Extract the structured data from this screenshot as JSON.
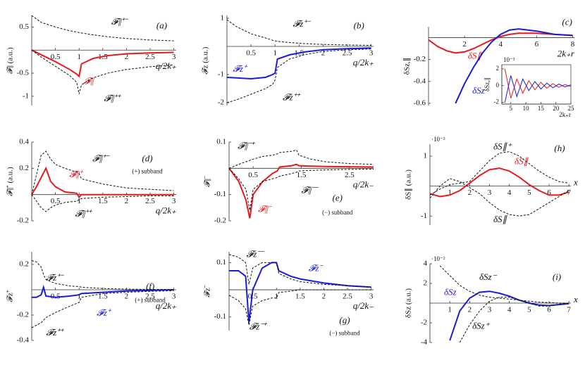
{
  "chart_data": [
    {
      "type": "line",
      "label": "(a)",
      "xlabel": "q/2k₊",
      "ylabel": "𝓕∥ (a.u.)",
      "xlim": [
        0,
        3.05
      ],
      "ylim": [
        -1.2,
        0.75
      ],
      "xticks": [
        0.5,
        1,
        1.5,
        2,
        2.5,
        3
      ],
      "yticks": [
        -1,
        -0.5,
        0.5
      ],
      "x": [
        0,
        0.2,
        0.5,
        0.8,
        0.95,
        1,
        1.05,
        1.3,
        1.6,
        2,
        2.5,
        3
      ],
      "series": [
        {
          "name": "𝓕∥",
          "color": "#e8191c",
          "style": "solid",
          "values": [
            0,
            -0.1,
            -0.25,
            -0.42,
            -0.52,
            -0.57,
            -0.3,
            -0.18,
            -0.12,
            -0.08,
            -0.06,
            -0.05
          ]
        },
        {
          "name": "𝓕∥⁺⁻",
          "color": "#111111",
          "style": "dashed",
          "values": [
            0.75,
            0.6,
            0.5,
            0.42,
            0.39,
            0.38,
            0.37,
            0.33,
            0.29,
            0.25,
            0.22,
            0.2
          ]
        },
        {
          "name": "𝓕∥⁺⁺",
          "color": "#111111",
          "style": "dashed",
          "values": [
            0,
            -0.15,
            -0.35,
            -0.55,
            -0.7,
            -0.95,
            -0.75,
            -0.6,
            -0.5,
            -0.42,
            -0.36,
            -0.32
          ]
        }
      ]
    },
    {
      "type": "line",
      "label": "(b)",
      "xlabel": "q/2k₊",
      "ylabel": "𝓕z (a.u.)",
      "xlim": [
        0,
        3.05
      ],
      "ylim": [
        -2.1,
        1.1
      ],
      "xticks": [
        0.5,
        1,
        1.5,
        2,
        2.5,
        3
      ],
      "yticks": [
        -2,
        -1,
        1
      ],
      "x": [
        0,
        0.2,
        0.5,
        0.8,
        0.95,
        1,
        1.05,
        1.3,
        1.6,
        2,
        2.5,
        3
      ],
      "series": [
        {
          "name": "𝓕z⁺",
          "color": "#1a1adb",
          "style": "solid",
          "values": [
            -1.1,
            -1.12,
            -1.15,
            -1.1,
            -1.0,
            -0.95,
            -0.45,
            -0.3,
            -0.2,
            -0.12,
            -0.08,
            -0.06
          ]
        },
        {
          "name": "𝓕z⁺⁻",
          "color": "#111111",
          "style": "dashed",
          "values": [
            0.95,
            0.7,
            0.45,
            0.3,
            0.22,
            0.2,
            0.18,
            0.14,
            0.1,
            0.07,
            0.05,
            0.04
          ]
        },
        {
          "name": "𝓕z⁺⁺",
          "color": "#111111",
          "style": "dashed",
          "values": [
            -2,
            -1.9,
            -1.7,
            -1.5,
            -1.35,
            -1.2,
            -0.75,
            -0.45,
            -0.3,
            -0.18,
            -0.12,
            -0.09
          ]
        }
      ]
    },
    {
      "type": "line",
      "label": "(c)",
      "xlabel": "2k₊r",
      "ylabel": "δSz,∥",
      "xlim": [
        0,
        8.1
      ],
      "ylim": [
        -0.62,
        0.1
      ],
      "xticks": [
        2,
        4,
        6,
        8
      ],
      "yticks": [
        -0.6,
        -0.4,
        -0.2
      ],
      "x": [
        0,
        0.5,
        1,
        1.5,
        2,
        2.5,
        3,
        3.5,
        4,
        4.5,
        5,
        6,
        7,
        8
      ],
      "series": [
        {
          "name": "δS∥",
          "color": "#e8191c",
          "style": "solid",
          "values": [
            -0.02,
            -0.08,
            -0.12,
            -0.14,
            -0.13,
            -0.1,
            -0.06,
            -0.02,
            0.01,
            0.03,
            0.04,
            0.04,
            0.03,
            0.02
          ]
        },
        {
          "name": "δSz",
          "color": "#1a1adb",
          "style": "solid",
          "values": [
            null,
            null,
            null,
            -0.6,
            -0.42,
            -0.27,
            -0.14,
            -0.04,
            0.03,
            0.07,
            0.08,
            0.06,
            0.03,
            0.02
          ]
        }
      ]
    },
    {
      "type": "line",
      "label": "(d)",
      "annotation": "(+) subband",
      "xlabel": "q/2k₊",
      "ylabel": "𝓕∥⁺ (a.u.)",
      "xlim": [
        0,
        3.05
      ],
      "ylim": [
        -0.2,
        0.4
      ],
      "xticks": [
        0.5,
        1,
        1.5,
        2,
        2.5,
        3
      ],
      "yticks": [
        -0.2,
        0.2,
        0.4
      ],
      "x": [
        0,
        0.1,
        0.2,
        0.3,
        0.4,
        0.5,
        0.7,
        0.95,
        1,
        1.05,
        1.5,
        2,
        2.5,
        3
      ],
      "series": [
        {
          "name": "𝓕∥⁺",
          "color": "#e8191c",
          "style": "solid",
          "values": [
            0,
            0.06,
            0.13,
            0.2,
            0.1,
            0.06,
            0.02,
            0.01,
            -0.02,
            0,
            0,
            0,
            0,
            0
          ]
        },
        {
          "name": "𝓕∥⁺⁻",
          "color": "#111111",
          "style": "dashed",
          "values": [
            0,
            0.15,
            0.3,
            0.33,
            0.27,
            0.23,
            0.2,
            0.17,
            0.16,
            0.12,
            0.08,
            0.05,
            0.04,
            0.03
          ]
        },
        {
          "name": "𝓕∥⁺⁺",
          "color": "#111111",
          "style": "dashed",
          "values": [
            0,
            -0.05,
            -0.1,
            -0.13,
            -0.1,
            -0.08,
            -0.06,
            -0.05,
            -0.04,
            -0.03,
            -0.02,
            -0.015,
            -0.01,
            -0.01
          ]
        }
      ]
    },
    {
      "type": "line",
      "label": "(e)",
      "annotation": "(−) subband",
      "xlabel": "q/2k₋",
      "ylabel": "𝓕∥⁻",
      "xlim": [
        0,
        3
      ],
      "ylim": [
        -0.2,
        0.1
      ],
      "xticks": [
        0.5,
        1.5,
        2.5
      ],
      "yticks": [
        -0.2,
        -0.1,
        0.1
      ],
      "x": [
        0,
        0.2,
        0.35,
        0.43,
        0.5,
        0.7,
        0.9,
        1,
        1.05,
        1.3,
        1.4,
        1.45,
        1.7,
        2,
        2.5,
        3
      ],
      "series": [
        {
          "name": "𝓕∥⁻",
          "color": "#e8191c",
          "style": "solid",
          "values": [
            0,
            -0.05,
            -0.12,
            -0.19,
            -0.1,
            -0.05,
            -0.02,
            -0.01,
            0.005,
            0.01,
            0.015,
            0.01,
            0.008,
            0.007,
            0.006,
            0.005
          ]
        },
        {
          "name": "𝓕∥⁻⁺",
          "color": "#111111",
          "style": "dashed",
          "values": [
            0,
            0.015,
            0.025,
            0.03,
            0.035,
            0.045,
            0.05,
            0.055,
            0.06,
            0.065,
            0.07,
            0.05,
            0.035,
            0.025,
            0.018,
            0.015
          ]
        },
        {
          "name": "𝓕∥⁻⁻",
          "color": "#111111",
          "style": "dashed",
          "values": [
            0,
            -0.04,
            -0.08,
            -0.16,
            -0.08,
            -0.05,
            -0.04,
            -0.035,
            -0.03,
            -0.02,
            -0.015,
            -0.01,
            -0.008,
            -0.006,
            -0.004,
            -0.003
          ]
        }
      ]
    },
    {
      "type": "line",
      "label": "(h)",
      "multiplier": "·10⁻²",
      "xlabel": "x",
      "ylabel": "δS∥ (a.u.)",
      "xlim": [
        0,
        7.1
      ],
      "ylim": [
        -1.3,
        1.4
      ],
      "xticks": [
        1,
        2,
        3,
        4,
        5,
        6,
        7
      ],
      "yticks": [
        -1,
        1
      ],
      "x": [
        0,
        0.5,
        1,
        1.5,
        2,
        2.5,
        3,
        3.5,
        4,
        4.5,
        5,
        5.5,
        6,
        6.5,
        7
      ],
      "series": [
        {
          "name": "δS∥",
          "color": "#e8191c",
          "style": "solid",
          "values": [
            -0.25,
            -0.35,
            -0.3,
            -0.15,
            0.1,
            0.35,
            0.55,
            0.6,
            0.5,
            0.3,
            0.05,
            -0.15,
            -0.3,
            -0.3,
            -0.2
          ]
        },
        {
          "name": "δS∥⁺",
          "color": "#111111",
          "style": "dashed",
          "values": [
            -0.3,
            -0.1,
            0.05,
            0.1,
            0.15,
            0.5,
            0.85,
            1.1,
            1.15,
            1.0,
            0.75,
            0.5,
            0.3,
            0.15,
            0.1
          ]
        },
        {
          "name": "δS∥",
          "color": "#111111",
          "style": "dashed",
          "values": [
            -0.4,
            0,
            0.25,
            0.15,
            -0.05,
            -0.25,
            -0.55,
            -0.8,
            -0.95,
            -1.0,
            -0.95,
            -0.75,
            -0.55,
            -0.35,
            -0.15
          ]
        }
      ]
    },
    {
      "type": "line",
      "label": "(f)",
      "annotation": "(+) subband",
      "xlabel": "q/2k₊",
      "ylabel": "𝓕z⁺",
      "xlim": [
        0,
        3.05
      ],
      "ylim": [
        -0.4,
        0.3
      ],
      "xticks": [
        0.5,
        1,
        1.5,
        2,
        2.5,
        3
      ],
      "yticks": [
        -0.4,
        -0.2,
        0.2
      ],
      "x": [
        0,
        0.1,
        0.2,
        0.25,
        0.3,
        0.5,
        0.8,
        1,
        1.05,
        1.5,
        2,
        2.5,
        3
      ],
      "series": [
        {
          "name": "𝓕z⁺",
          "color": "#1a1adb",
          "style": "solid",
          "values": [
            -0.06,
            -0.06,
            -0.04,
            0.02,
            -0.05,
            -0.06,
            -0.05,
            -0.04,
            -0.03,
            -0.02,
            -0.01,
            -0.005,
            0
          ]
        },
        {
          "name": "𝓕z⁺⁻",
          "color": "#111111",
          "style": "dashed",
          "values": [
            0.23,
            0.22,
            0.18,
            0.12,
            0.08,
            0.05,
            0.03,
            0.025,
            0.02,
            0.01,
            0.005,
            0.003,
            0.002
          ]
        },
        {
          "name": "𝓕z⁺⁺",
          "color": "#111111",
          "style": "dashed",
          "values": [
            -0.3,
            -0.28,
            -0.26,
            -0.24,
            -0.22,
            -0.18,
            -0.13,
            -0.1,
            -0.06,
            -0.03,
            -0.02,
            -0.012,
            -0.008
          ]
        }
      ]
    },
    {
      "type": "line",
      "label": "(g)",
      "annotation": "(−) subband",
      "xlabel": "q/2k₋",
      "ylabel": "𝓕z⁻",
      "xlim": [
        0,
        3.05
      ],
      "ylim": [
        -0.15,
        0.14
      ],
      "xticks": [
        0.5,
        1,
        1.5,
        2,
        2.5,
        3
      ],
      "yticks": [
        -0.1,
        0.1
      ],
      "x": [
        0,
        0.2,
        0.35,
        0.42,
        0.5,
        0.7,
        0.9,
        1,
        1.05,
        1.3,
        1.5,
        2,
        2.5,
        3
      ],
      "series": [
        {
          "name": "𝓕z⁻",
          "color": "#1a1adb",
          "style": "solid",
          "values": [
            0.07,
            0.07,
            0.05,
            -0.12,
            0,
            0.08,
            0.1,
            0.1,
            0.07,
            0.05,
            0.04,
            0.025,
            0.015,
            0.01
          ]
        },
        {
          "name": "𝓕z⁻⁻",
          "color": "#111111",
          "style": "dashed",
          "values": [
            0.13,
            0.12,
            0.1,
            0.02,
            0.08,
            0.1,
            0.1,
            0.1,
            0.06,
            0.04,
            0.03,
            0.02,
            0.015,
            0.01
          ]
        },
        {
          "name": "𝓕z⁻⁺",
          "color": "#111111",
          "style": "dashed",
          "values": [
            -0.02,
            -0.04,
            -0.07,
            -0.13,
            -0.06,
            -0.04,
            -0.03,
            -0.03,
            -0.01,
            -0.005,
            0,
            0,
            0,
            0
          ]
        }
      ]
    },
    {
      "type": "line",
      "label": "(i)",
      "multiplier": "·10⁻²",
      "xlabel": "x",
      "ylabel": "δSz (a.u.)",
      "xlim": [
        0,
        7.1
      ],
      "ylim": [
        -4,
        4
      ],
      "xticks": [
        1,
        2,
        3,
        4,
        5,
        6,
        7
      ],
      "yticks": [
        -4,
        -2,
        2,
        4
      ],
      "x": [
        0.5,
        1,
        1.5,
        2,
        2.5,
        3,
        3.5,
        4,
        4.5,
        5,
        5.5,
        6,
        6.5,
        7
      ],
      "series": [
        {
          "name": "δSz",
          "color": "#1a1adb",
          "style": "solid",
          "values": [
            null,
            -3.8,
            -0.8,
            0.5,
            1.1,
            1.2,
            1.0,
            0.7,
            0.3,
            0,
            -0.2,
            -0.25,
            -0.15,
            -0.05
          ]
        },
        {
          "name": "δSz⁻",
          "color": "#111111",
          "style": "dashed",
          "values": [
            3.8,
            2.8,
            1.8,
            1.2,
            0.8,
            0.6,
            0.5,
            0.4,
            0.3,
            0.2,
            0.1,
            0.05,
            0,
            0
          ]
        },
        {
          "name": "δSz⁺",
          "color": "#111111",
          "style": "dashed",
          "values": [
            null,
            null,
            -4,
            -2.2,
            -0.8,
            0.2,
            0.6,
            0.6,
            0.3,
            0,
            -0.3,
            -0.3,
            -0.1,
            0
          ]
        }
      ]
    },
    {
      "type": "line",
      "multiplier": "10⁻³",
      "xlabel": "2k₊r",
      "ylabel": "δSz,∥",
      "xlim": [
        2,
        25
      ],
      "ylim": [
        -2.2,
        2.5
      ],
      "xticks": [
        5,
        10,
        15,
        20,
        25
      ],
      "yticks": [
        -2,
        0,
        2
      ],
      "x": [
        3,
        5,
        7,
        9,
        11,
        13,
        15,
        17,
        19,
        21,
        23,
        25
      ],
      "series": [
        {
          "color": "#e8191c",
          "style": "solid",
          "values": [
            2,
            -1.5,
            0.8,
            -0.9,
            0.6,
            -0.5,
            0.4,
            -0.3,
            0.25,
            -0.2,
            0.15,
            -0.12
          ]
        },
        {
          "color": "#1a1adb",
          "style": "solid",
          "values": [
            -2,
            1.2,
            -1.3,
            0.8,
            -0.6,
            0.5,
            -0.4,
            0.3,
            -0.25,
            0.2,
            -0.15,
            0.1
          ]
        }
      ]
    }
  ]
}
